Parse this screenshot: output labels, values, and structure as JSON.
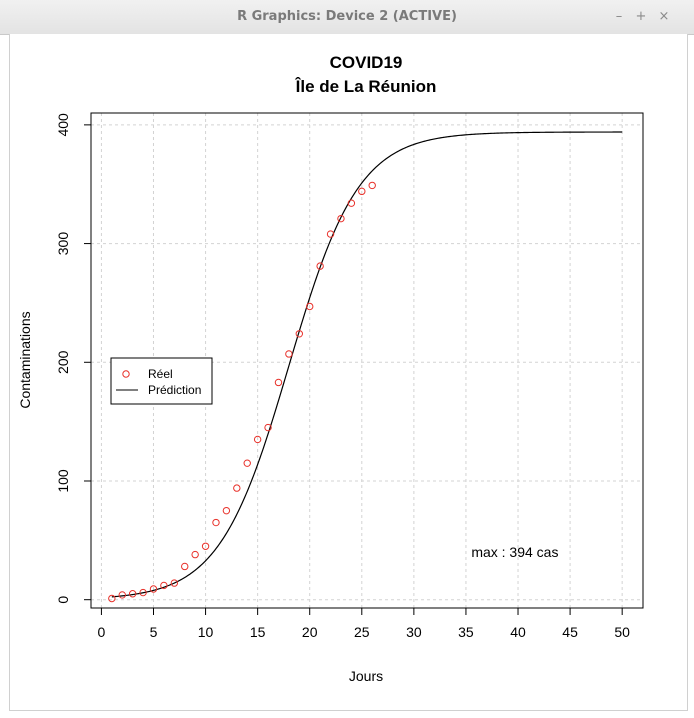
{
  "window": {
    "title": "R Graphics: Device 2 (ACTIVE)",
    "controls": [
      "–",
      "+",
      "×"
    ]
  },
  "chart_data": {
    "type": "scatter",
    "title": "COVID19",
    "subtitle": "Île de La Réunion",
    "xlabel": "Jours",
    "ylabel": "Contaminations",
    "xlim": [
      -1,
      52
    ],
    "ylim": [
      -7,
      410
    ],
    "x_ticks": [
      0,
      5,
      10,
      15,
      20,
      25,
      30,
      35,
      40,
      45,
      50
    ],
    "y_ticks": [
      0,
      100,
      200,
      300,
      400
    ],
    "grid": true,
    "legend": {
      "position": "left",
      "entries": [
        {
          "label": "Réel",
          "marker": "circle",
          "color": "#e8312a"
        },
        {
          "label": "Prédiction",
          "marker": "line",
          "color": "#000000"
        }
      ]
    },
    "annotation": "max : 394 cas",
    "annotation_pos": {
      "x": 39.7,
      "y": 40
    },
    "series": [
      {
        "name": "Réel",
        "kind": "points",
        "color": "#e8312a",
        "x": [
          1,
          2,
          3,
          4,
          5,
          6,
          7,
          8,
          9,
          10,
          11,
          12,
          13,
          14,
          15,
          16,
          17,
          18,
          19,
          20,
          21,
          22,
          23,
          24,
          25,
          26
        ],
        "y": [
          1,
          4,
          5,
          6,
          9,
          12,
          14,
          28,
          38,
          45,
          65,
          75,
          94,
          115,
          135,
          145,
          183,
          207,
          224,
          247,
          281,
          308,
          321,
          334,
          344,
          349
        ]
      },
      {
        "name": "Prédiction",
        "kind": "logistic_curve",
        "color": "#000000",
        "params": {
          "K": 394,
          "r": 0.3,
          "x0": 18.0
        },
        "x_range": [
          1,
          50
        ]
      }
    ]
  }
}
